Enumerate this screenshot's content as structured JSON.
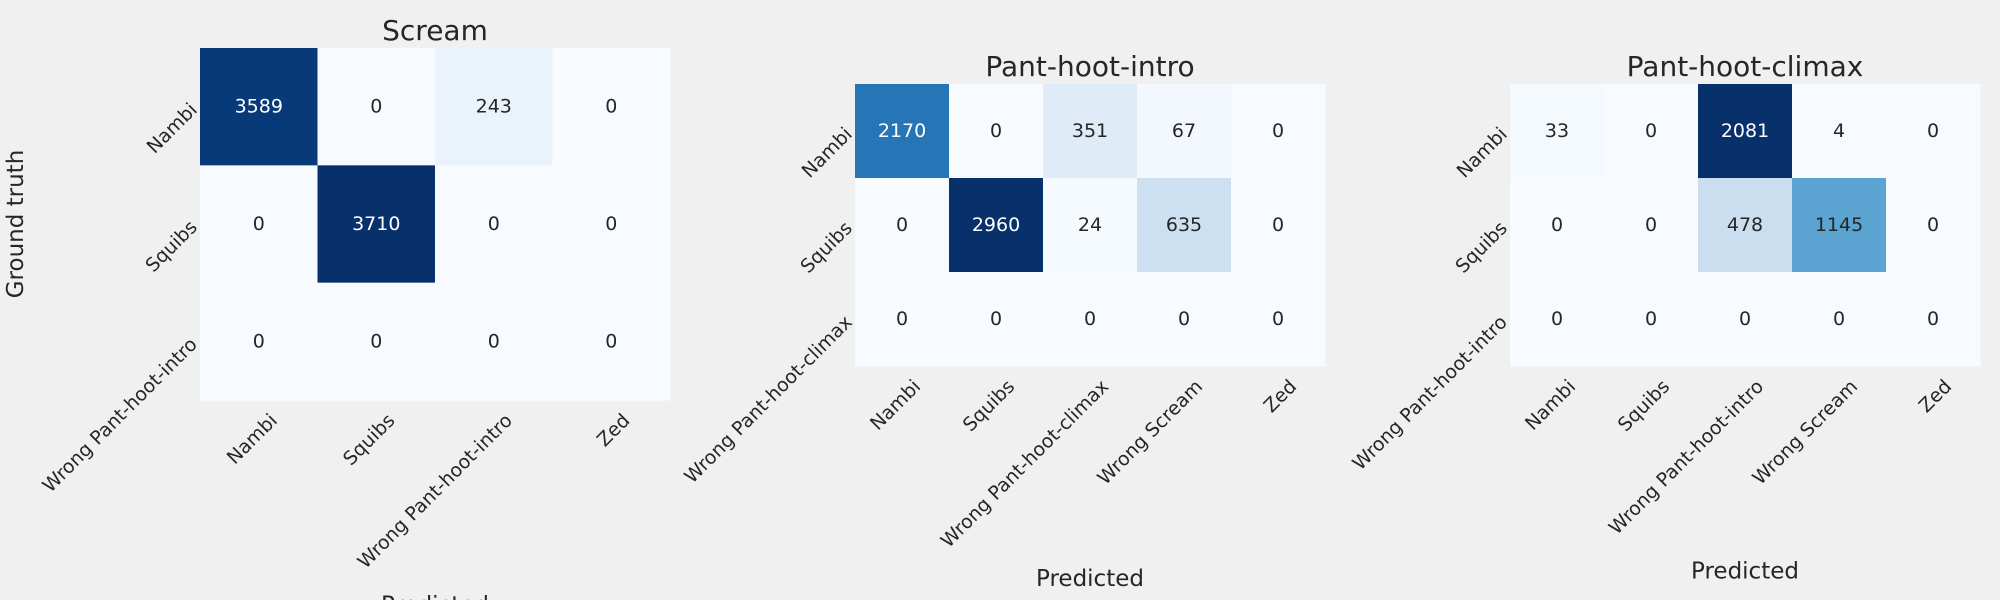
{
  "chart_data": [
    {
      "type": "heatmap",
      "title": "Scream",
      "xlabel": "Predicted",
      "ylabel": "Ground truth",
      "x_categories": [
        "Nambi",
        "Squibs",
        "Wrong Pant-hoot-intro",
        "Zed"
      ],
      "y_categories": [
        "Nambi",
        "Squibs",
        "Wrong Pant-hoot-intro"
      ],
      "values": [
        [
          3589,
          0,
          243,
          0
        ],
        [
          0,
          3710,
          0,
          0
        ],
        [
          0,
          0,
          0,
          0
        ]
      ],
      "colormap": "Blues"
    },
    {
      "type": "heatmap",
      "title": "Pant-hoot-intro",
      "xlabel": "Predicted",
      "ylabel": "",
      "x_categories": [
        "Nambi",
        "Squibs",
        "Wrong Pant-hoot-climax",
        "Wrong Scream",
        "Zed"
      ],
      "y_categories": [
        "Nambi",
        "Squibs",
        "Wrong Pant-hoot-climax"
      ],
      "values": [
        [
          2170,
          0,
          351,
          67,
          0
        ],
        [
          0,
          2960,
          24,
          635,
          0
        ],
        [
          0,
          0,
          0,
          0,
          0
        ]
      ],
      "colormap": "Blues"
    },
    {
      "type": "heatmap",
      "title": "Pant-hoot-climax",
      "xlabel": "Predicted",
      "ylabel": "",
      "x_categories": [
        "Nambi",
        "Squibs",
        "Wrong Pant-hoot-intro",
        "Wrong Scream",
        "Zed"
      ],
      "y_categories": [
        "Nambi",
        "Squibs",
        "Wrong Pant-hoot-intro"
      ],
      "values": [
        [
          33,
          0,
          2081,
          4,
          0
        ],
        [
          0,
          0,
          478,
          1145,
          0
        ],
        [
          0,
          0,
          0,
          0,
          0
        ]
      ],
      "colormap": "Blues"
    }
  ],
  "colors": {
    "background": "#f0f0f0",
    "text": "#262626",
    "cmap_low": "#f7fbff",
    "cmap_high": "#08306b"
  }
}
